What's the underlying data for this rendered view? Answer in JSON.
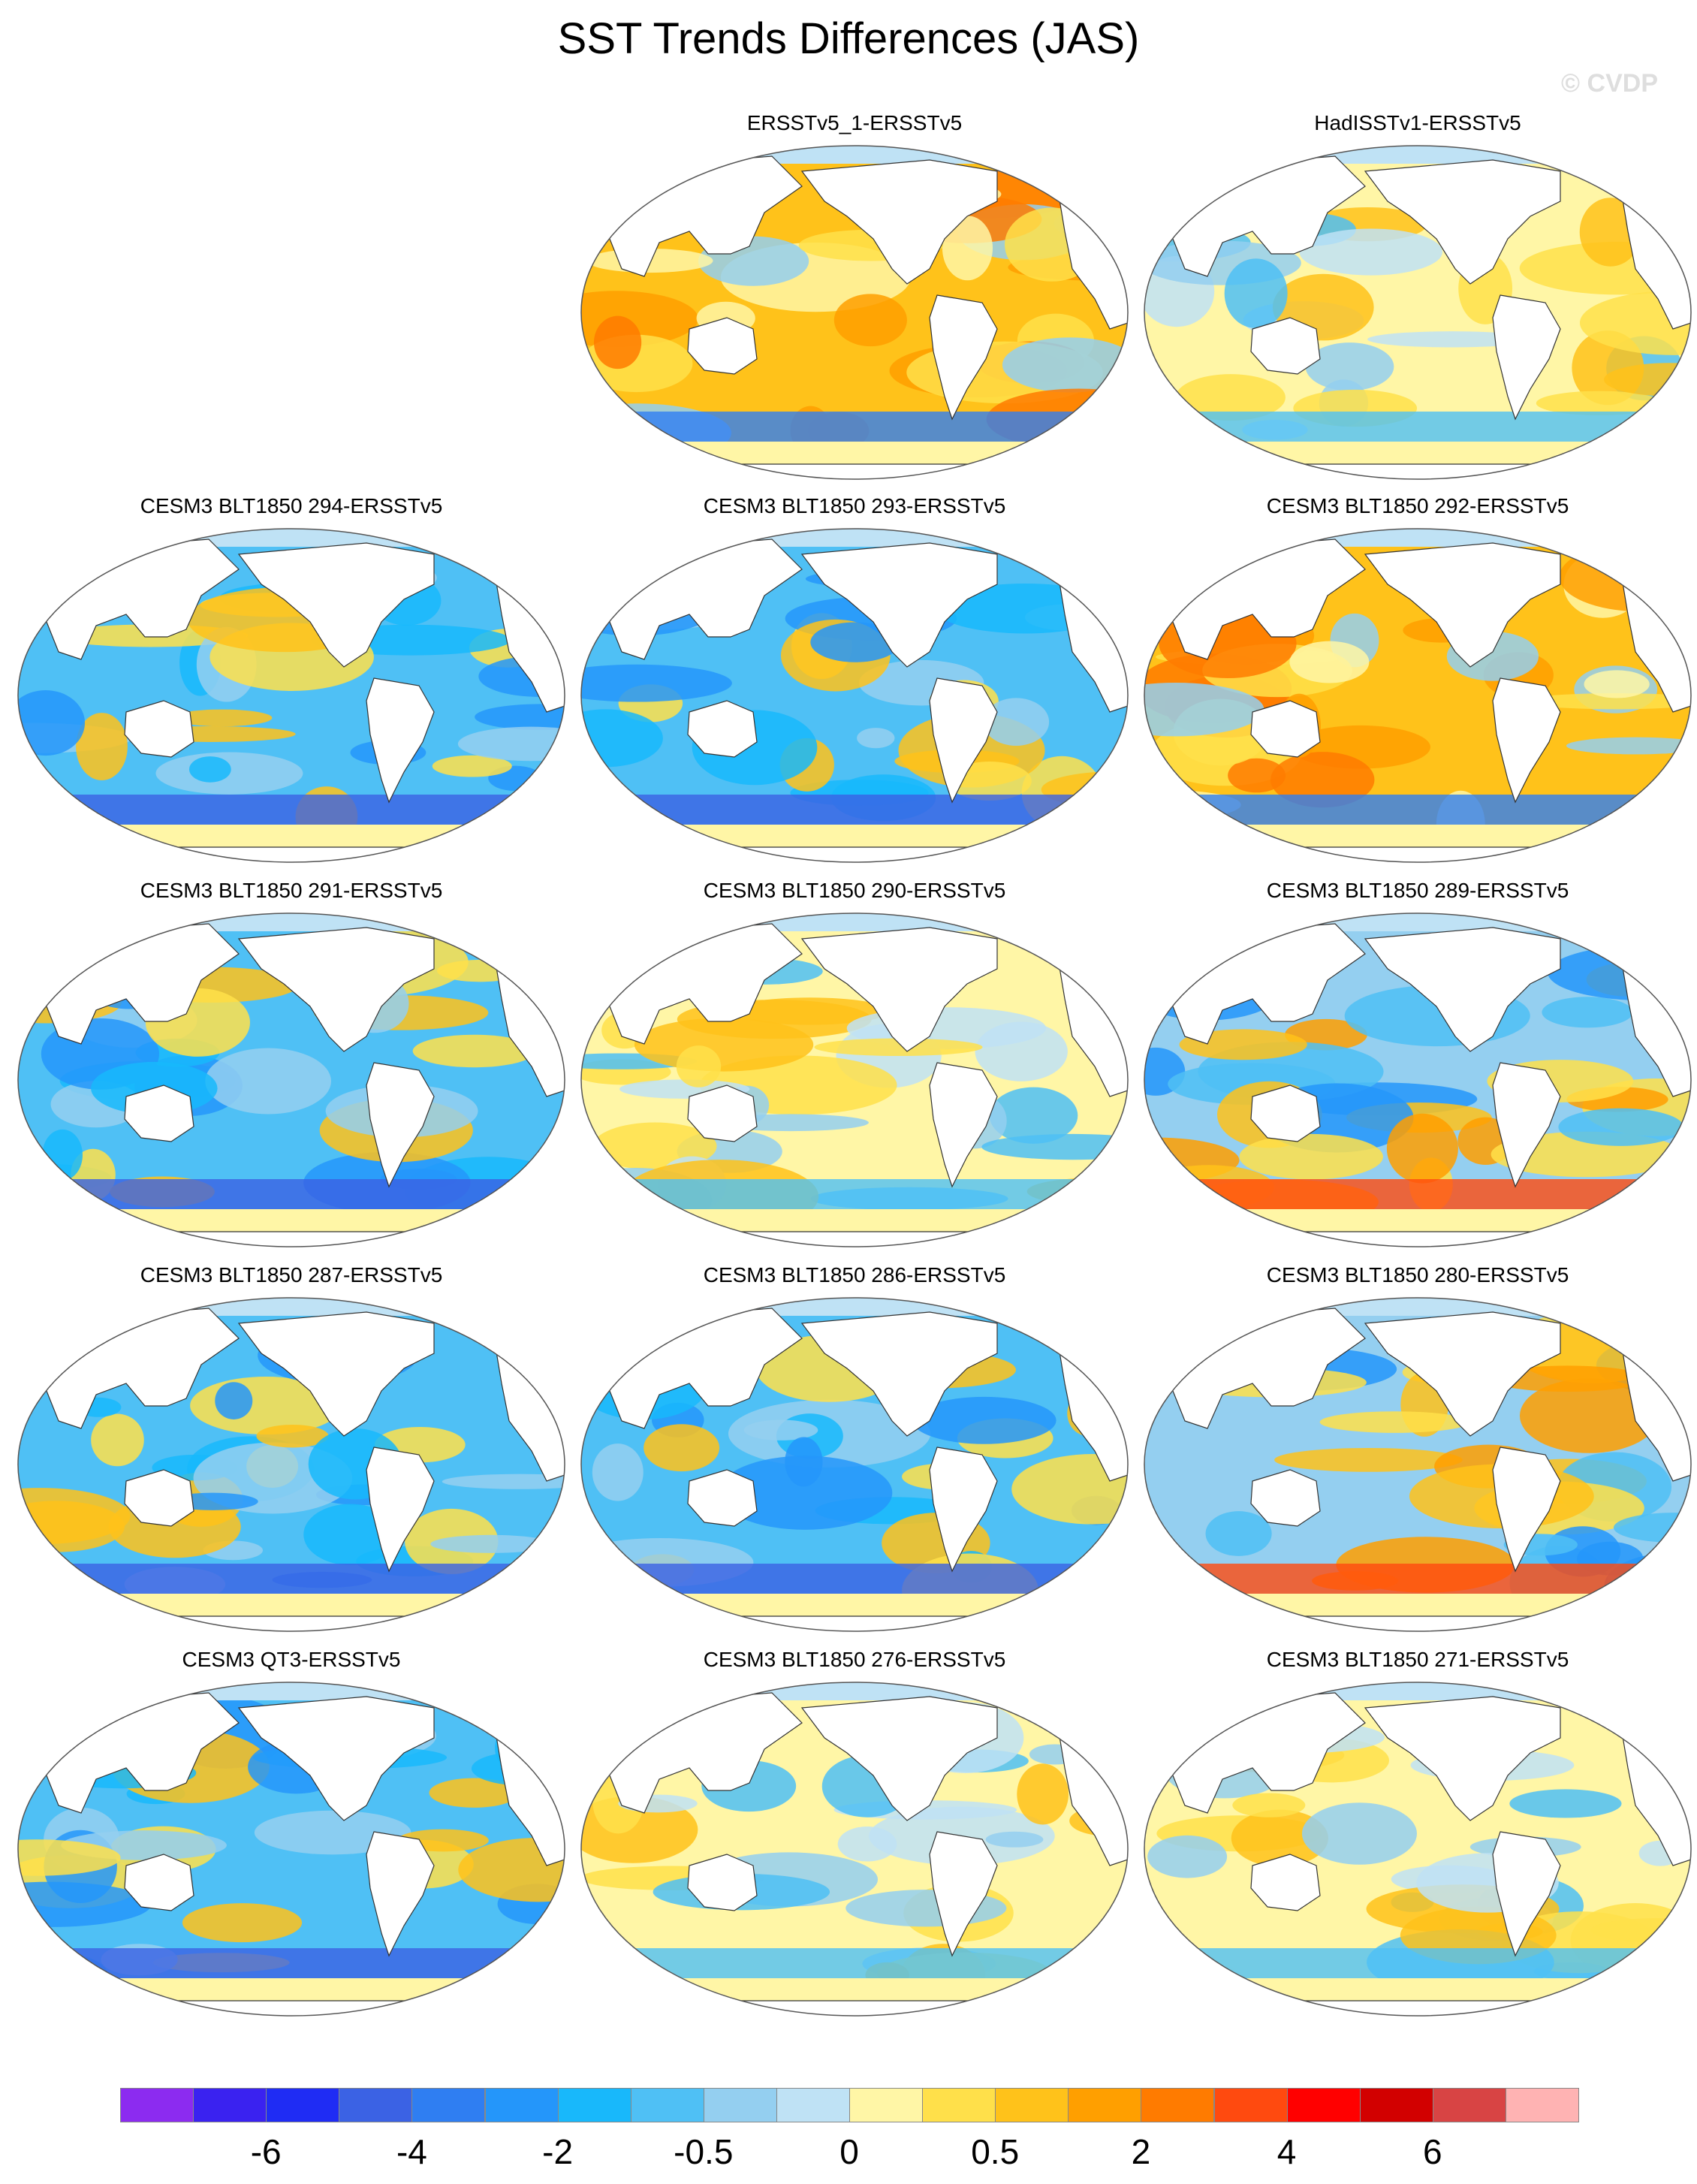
{
  "title": "SST Trends Differences (JAS)",
  "watermark": "© CVDP",
  "panels": [
    {
      "label": "ERSSTv5_1-ERSSTv5",
      "theme": "warm"
    },
    {
      "label": "HadISSTv1-ERSSTv5",
      "theme": "mixed"
    },
    {
      "label": "CESM3 BLT1850 294-ERSSTv5",
      "theme": "cool"
    },
    {
      "label": "CESM3 BLT1850 293-ERSSTv5",
      "theme": "cool"
    },
    {
      "label": "CESM3 BLT1850 292-ERSSTv5",
      "theme": "warm"
    },
    {
      "label": "CESM3 BLT1850 291-ERSSTv5",
      "theme": "cool"
    },
    {
      "label": "CESM3 BLT1850 290-ERSSTv5",
      "theme": "mixed"
    },
    {
      "label": "CESM3 BLT1850 289-ERSSTv5",
      "theme": "warmcool"
    },
    {
      "label": "CESM3 BLT1850 287-ERSSTv5",
      "theme": "cool"
    },
    {
      "label": "CESM3 BLT1850 286-ERSSTv5",
      "theme": "cool"
    },
    {
      "label": "CESM3 BLT1850 280-ERSSTv5",
      "theme": "warmcool"
    },
    {
      "label": "CESM3 QT3-ERSSTv5",
      "theme": "cool"
    },
    {
      "label": "CESM3 BLT1850 276-ERSSTv5",
      "theme": "mixed"
    },
    {
      "label": "CESM3 BLT1850 271-ERSSTv5",
      "theme": "mixed"
    }
  ],
  "colorbar": {
    "colors": [
      "#8c2bf0",
      "#3a22f0",
      "#1f2cf4",
      "#3b62e4",
      "#2f7ef2",
      "#2496fa",
      "#18b8fb",
      "#4fc0f5",
      "#94cff0",
      "#bfe2f5",
      "#fff6a6",
      "#ffe04a",
      "#ffc21a",
      "#ff9f00",
      "#ff7b00",
      "#ff4a0f",
      "#ff0000",
      "#d20000",
      "#d84444",
      "#ffb3b3"
    ],
    "labels": [
      "-6",
      "-4",
      "-2",
      "-0.5",
      "0",
      "0.5",
      "2",
      "4",
      "6"
    ]
  }
}
